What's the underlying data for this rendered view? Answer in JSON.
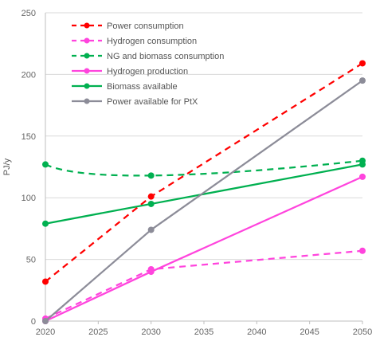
{
  "chart_data": {
    "type": "line",
    "title": "",
    "xlabel": "",
    "ylabel": "PJ/y",
    "xlim": [
      2020,
      2050
    ],
    "ylim": [
      0,
      250
    ],
    "x_ticks": [
      2020,
      2025,
      2030,
      2035,
      2040,
      2045,
      2050
    ],
    "y_ticks": [
      0,
      50,
      100,
      150,
      200,
      250
    ],
    "grid": "horizontal",
    "legend_position": "top-left",
    "series": [
      {
        "name": "Power consumption",
        "color": "#ff0000",
        "dash": "dashed",
        "x": [
          2020,
          2030,
          2050
        ],
        "y": [
          32,
          101,
          209
        ],
        "smooth": false
      },
      {
        "name": "Hydrogen consumption",
        "color": "#ff44dd",
        "dash": "dashed",
        "x": [
          2020,
          2030,
          2050
        ],
        "y": [
          2,
          42,
          57
        ],
        "smooth": false
      },
      {
        "name": "NG and biomass consumption",
        "color": "#00b050",
        "dash": "dashed",
        "x": [
          2020,
          2030,
          2050
        ],
        "y": [
          127,
          118,
          130
        ],
        "smooth": true
      },
      {
        "name": "Hydrogen production",
        "color": "#ff44dd",
        "dash": "solid",
        "x": [
          2020,
          2030,
          2050
        ],
        "y": [
          0,
          40,
          117
        ],
        "smooth": false
      },
      {
        "name": "Biomass available",
        "color": "#00b050",
        "dash": "solid",
        "x": [
          2020,
          2030,
          2050
        ],
        "y": [
          79,
          95,
          127
        ],
        "smooth": false
      },
      {
        "name": "Power available for PtX",
        "color": "#8c8c98",
        "dash": "solid",
        "x": [
          2020,
          2030,
          2050
        ],
        "y": [
          0,
          74,
          195
        ],
        "smooth": false
      }
    ]
  }
}
